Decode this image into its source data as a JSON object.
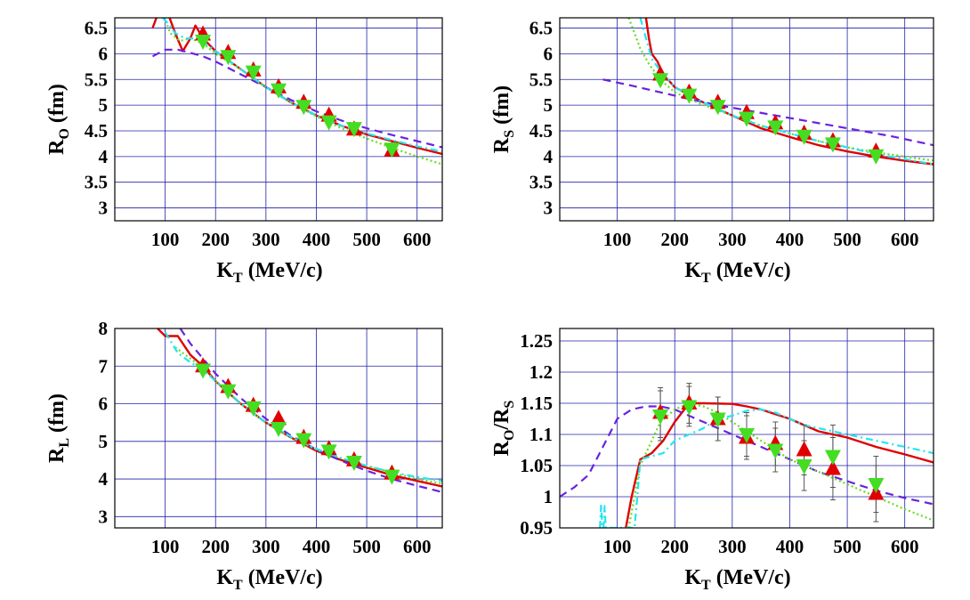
{
  "colors": {
    "solid": "#e00000",
    "dashed": "#6a22e0",
    "dotted": "#66dd22",
    "dashdot": "#22e6f0",
    "data_red": "#e00000",
    "data_green": "#44dd22",
    "grid": "#2222aa"
  },
  "chart_data": [
    {
      "id": "RO",
      "type": "line",
      "xlabel": "K",
      "xlabel_sub": "T",
      "xlabel_rest": " (MeV/c)",
      "ylabel": "R",
      "ylabel_sub": "O",
      "ylabel_rest": " (fm)",
      "xlim": [
        0,
        650
      ],
      "ylim": [
        2.75,
        6.7
      ],
      "xticks": [
        "100",
        "200",
        "300",
        "400",
        "500",
        "600"
      ],
      "yticks": [
        "3",
        "3.5",
        "4",
        "4.5",
        "5",
        "5.5",
        "6",
        "6.5"
      ],
      "series": [
        {
          "style": "solid",
          "x": [
            75,
            90,
            105,
            120,
            135,
            150,
            160,
            175,
            200,
            250,
            300,
            350,
            400,
            450,
            500,
            550,
            600,
            650
          ],
          "y": [
            6.5,
            6.9,
            6.8,
            6.4,
            6.05,
            6.3,
            6.55,
            6.3,
            6.05,
            5.7,
            5.35,
            5.05,
            4.8,
            4.6,
            4.43,
            4.3,
            4.17,
            4.05
          ]
        },
        {
          "style": "dashed",
          "x": [
            75,
            100,
            125,
            150,
            175,
            200,
            250,
            300,
            350,
            400,
            450,
            500,
            550,
            600,
            650
          ],
          "y": [
            5.95,
            6.08,
            6.08,
            6.02,
            5.95,
            5.85,
            5.6,
            5.35,
            5.1,
            4.88,
            4.7,
            4.55,
            4.42,
            4.3,
            4.18
          ]
        },
        {
          "style": "dotted",
          "x": [
            95,
            110,
            130,
            150,
            175,
            200,
            250,
            300,
            350,
            400,
            450,
            500,
            550,
            600,
            650
          ],
          "y": [
            6.8,
            6.4,
            6.25,
            6.3,
            6.2,
            6.0,
            5.7,
            5.35,
            5.05,
            4.78,
            4.55,
            4.35,
            4.17,
            4.0,
            3.85
          ]
        },
        {
          "style": "dashdot",
          "x": [
            95,
            105,
            120,
            140,
            160,
            180,
            200,
            250,
            300,
            350,
            400,
            450,
            500,
            550,
            600,
            650
          ],
          "y": [
            6.7,
            6.6,
            6.4,
            6.3,
            6.3,
            6.2,
            6.05,
            5.7,
            5.35,
            5.05,
            4.8,
            4.6,
            4.45,
            4.32,
            4.2,
            4.1
          ]
        }
      ],
      "points_red": {
        "x": [
          175,
          225,
          275,
          325,
          375,
          425,
          475,
          550
        ],
        "y": [
          6.38,
          6.02,
          5.68,
          5.35,
          5.05,
          4.8,
          4.53,
          4.12
        ]
      },
      "points_green": {
        "x": [
          175,
          225,
          275,
          325,
          375,
          425,
          475,
          550
        ],
        "y": [
          6.25,
          5.95,
          5.65,
          5.3,
          4.98,
          4.68,
          4.55,
          4.15
        ]
      }
    },
    {
      "id": "RS",
      "type": "line",
      "xlabel": "K",
      "xlabel_sub": "T",
      "xlabel_rest": " (MeV/c)",
      "ylabel": "R",
      "ylabel_sub": "S",
      "ylabel_rest": " (fm)",
      "xlim": [
        0,
        650
      ],
      "ylim": [
        2.75,
        6.7
      ],
      "xticks": [
        "100",
        "200",
        "300",
        "400",
        "500",
        "600"
      ],
      "yticks": [
        "3",
        "3.5",
        "4",
        "4.5",
        "5",
        "5.5",
        "6",
        "6.5"
      ],
      "series": [
        {
          "style": "solid",
          "x": [
            150,
            155,
            160,
            170,
            180,
            200,
            225,
            250,
            300,
            350,
            400,
            450,
            500,
            550,
            600,
            650
          ],
          "y": [
            6.7,
            6.3,
            6.0,
            5.85,
            5.6,
            5.35,
            5.2,
            5.05,
            4.8,
            4.55,
            4.38,
            4.22,
            4.1,
            4.0,
            3.92,
            3.85
          ]
        },
        {
          "style": "dashed",
          "x": [
            75,
            125,
            175,
            225,
            275,
            325,
            375,
            425,
            475,
            525,
            575,
            625,
            650
          ],
          "y": [
            5.5,
            5.38,
            5.25,
            5.12,
            5.0,
            4.9,
            4.8,
            4.7,
            4.6,
            4.5,
            4.4,
            4.28,
            4.22
          ]
        },
        {
          "style": "dotted",
          "x": [
            120,
            130,
            140,
            155,
            175,
            200,
            225,
            250,
            300,
            350,
            400,
            450,
            500,
            550,
            600,
            650
          ],
          "y": [
            6.7,
            6.4,
            6.1,
            5.8,
            5.5,
            5.25,
            5.12,
            5.0,
            4.8,
            4.6,
            4.45,
            4.3,
            4.18,
            4.08,
            4.0,
            3.92
          ]
        },
        {
          "style": "dashdot",
          "x": [
            140,
            150,
            160,
            180,
            200,
            225,
            250,
            300,
            350,
            400,
            450,
            500,
            550,
            600,
            650
          ],
          "y": [
            6.7,
            6.3,
            5.9,
            5.6,
            5.35,
            5.2,
            5.05,
            4.8,
            4.6,
            4.45,
            4.3,
            4.18,
            4.05,
            3.95,
            3.85
          ]
        }
      ],
      "points_red": {
        "x": [
          175,
          225,
          275,
          325,
          375,
          425,
          475,
          550
        ],
        "y": [
          5.6,
          5.25,
          5.05,
          4.85,
          4.65,
          4.45,
          4.3,
          4.1
        ]
      },
      "points_green": {
        "x": [
          175,
          225,
          275,
          325,
          375,
          425,
          475,
          550
        ],
        "y": [
          5.5,
          5.2,
          4.98,
          4.75,
          4.58,
          4.4,
          4.25,
          4.02
        ]
      }
    },
    {
      "id": "RL",
      "type": "line",
      "xlabel": "K",
      "xlabel_sub": "T",
      "xlabel_rest": " (MeV/c)",
      "ylabel": "R",
      "ylabel_sub": "L",
      "ylabel_rest": " (fm)",
      "xlim": [
        0,
        650
      ],
      "ylim": [
        2.7,
        8.0
      ],
      "xticks": [
        "100",
        "200",
        "300",
        "400",
        "500",
        "600"
      ],
      "yticks": [
        "3",
        "4",
        "5",
        "6",
        "7",
        "8"
      ],
      "series": [
        {
          "style": "solid",
          "x": [
            85,
            100,
            125,
            150,
            175,
            200,
            250,
            300,
            350,
            400,
            450,
            500,
            550,
            600,
            650
          ],
          "y": [
            8.0,
            7.8,
            7.8,
            7.3,
            7.0,
            6.6,
            6.0,
            5.5,
            5.1,
            4.75,
            4.5,
            4.3,
            4.1,
            3.95,
            3.8
          ]
        },
        {
          "style": "dashed",
          "x": [
            130,
            150,
            175,
            200,
            250,
            300,
            350,
            400,
            450,
            500,
            550,
            600,
            650
          ],
          "y": [
            8.0,
            7.6,
            7.2,
            6.8,
            6.15,
            5.6,
            5.15,
            4.78,
            4.48,
            4.22,
            4.0,
            3.82,
            3.65
          ]
        },
        {
          "style": "dotted",
          "x": [
            120,
            150,
            175,
            200,
            250,
            300,
            350,
            400,
            450,
            500,
            550,
            600,
            650
          ],
          "y": [
            7.5,
            7.2,
            6.95,
            6.6,
            6.0,
            5.5,
            5.1,
            4.78,
            4.55,
            4.35,
            4.17,
            4.0,
            3.88
          ]
        },
        {
          "style": "dashdot",
          "x": [
            100,
            125,
            150,
            175,
            200,
            250,
            300,
            350,
            400,
            450,
            500,
            550,
            600,
            650
          ],
          "y": [
            7.9,
            7.35,
            7.1,
            6.9,
            6.6,
            6.0,
            5.5,
            5.12,
            4.8,
            4.55,
            4.35,
            4.18,
            4.05,
            3.95
          ]
        }
      ],
      "points_red": {
        "x": [
          175,
          225,
          275,
          325,
          375,
          425,
          475,
          550
        ],
        "y": [
          7.0,
          6.45,
          5.95,
          5.6,
          5.1,
          4.8,
          4.5,
          4.15
        ]
      },
      "points_green": {
        "x": [
          175,
          225,
          275,
          325,
          375,
          425,
          475,
          550
        ],
        "y": [
          6.9,
          6.35,
          5.9,
          5.35,
          5.05,
          4.75,
          4.45,
          4.08
        ]
      }
    },
    {
      "id": "ratio",
      "type": "line",
      "xlabel": "K",
      "xlabel_sub": "T",
      "xlabel_rest": " (MeV/c)",
      "ylabel": "R",
      "ylabel_sub": "O",
      "ylabel_rest": "/R",
      "ylabel_sub2": "S",
      "xlim": [
        0,
        650
      ],
      "ylim": [
        0.95,
        1.27
      ],
      "xticks": [
        "100",
        "200",
        "300",
        "400",
        "500",
        "600"
      ],
      "yticks": [
        "0.95",
        "1",
        "1.05",
        "1.1",
        "1.15",
        "1.2",
        "1.25"
      ],
      "series": [
        {
          "style": "solid",
          "x": [
            115,
            125,
            140,
            160,
            180,
            200,
            225,
            250,
            300,
            325,
            350,
            400,
            425,
            450,
            500,
            550,
            600,
            650
          ],
          "y": [
            0.95,
            1.0,
            1.06,
            1.07,
            1.09,
            1.12,
            1.15,
            1.15,
            1.149,
            1.145,
            1.14,
            1.125,
            1.115,
            1.105,
            1.095,
            1.08,
            1.068,
            1.055
          ]
        },
        {
          "style": "dashed",
          "x": [
            0,
            25,
            50,
            75,
            100,
            125,
            150,
            175,
            200,
            225,
            250,
            300,
            350,
            400,
            450,
            500,
            550,
            600,
            650
          ],
          "y": [
            1.0,
            1.015,
            1.035,
            1.08,
            1.125,
            1.14,
            1.145,
            1.145,
            1.14,
            1.13,
            1.12,
            1.1,
            1.08,
            1.06,
            1.04,
            1.025,
            1.01,
            0.998,
            0.988
          ]
        },
        {
          "style": "dotted",
          "x": [
            120,
            140,
            160,
            175,
            200,
            225,
            250,
            275,
            300,
            350,
            400,
            450,
            500,
            550,
            600,
            650
          ],
          "y": [
            0.95,
            1.05,
            1.09,
            1.12,
            1.14,
            1.15,
            1.145,
            1.135,
            1.12,
            1.09,
            1.06,
            1.04,
            1.02,
            1.0,
            0.98,
            0.962
          ]
        },
        {
          "style": "dashdot",
          "x": [
            70,
            72,
            74,
            76,
            78,
            80,
            130,
            135,
            140,
            160,
            180,
            200,
            225,
            250,
            275,
            300,
            325,
            350,
            375,
            400,
            425,
            450,
            475,
            500,
            550,
            600,
            650
          ],
          "y": [
            0.95,
            0.988,
            0.95,
            0.95,
            0.985,
            0.95,
            0.95,
            1.0,
            1.06,
            1.065,
            1.07,
            1.09,
            1.1,
            1.11,
            1.125,
            1.13,
            1.138,
            1.14,
            1.135,
            1.125,
            1.115,
            1.11,
            1.105,
            1.1,
            1.09,
            1.08,
            1.07
          ]
        }
      ],
      "points_red": {
        "x": [
          175,
          225,
          275,
          325,
          375,
          425,
          475,
          550
        ],
        "y": [
          1.135,
          1.15,
          1.125,
          1.095,
          1.085,
          1.075,
          1.045,
          1.005
        ],
        "err": [
          0.04,
          0.032,
          0.035,
          0.035,
          0.035,
          0.04,
          0.05,
          0.045
        ]
      },
      "points_green": {
        "x": [
          175,
          225,
          275,
          325,
          375,
          425,
          475,
          550
        ],
        "y": [
          1.13,
          1.145,
          1.125,
          1.1,
          1.075,
          1.05,
          1.065,
          1.02
        ],
        "err": [
          0.04,
          0.032,
          0.035,
          0.035,
          0.035,
          0.04,
          0.05,
          0.045
        ]
      }
    }
  ]
}
